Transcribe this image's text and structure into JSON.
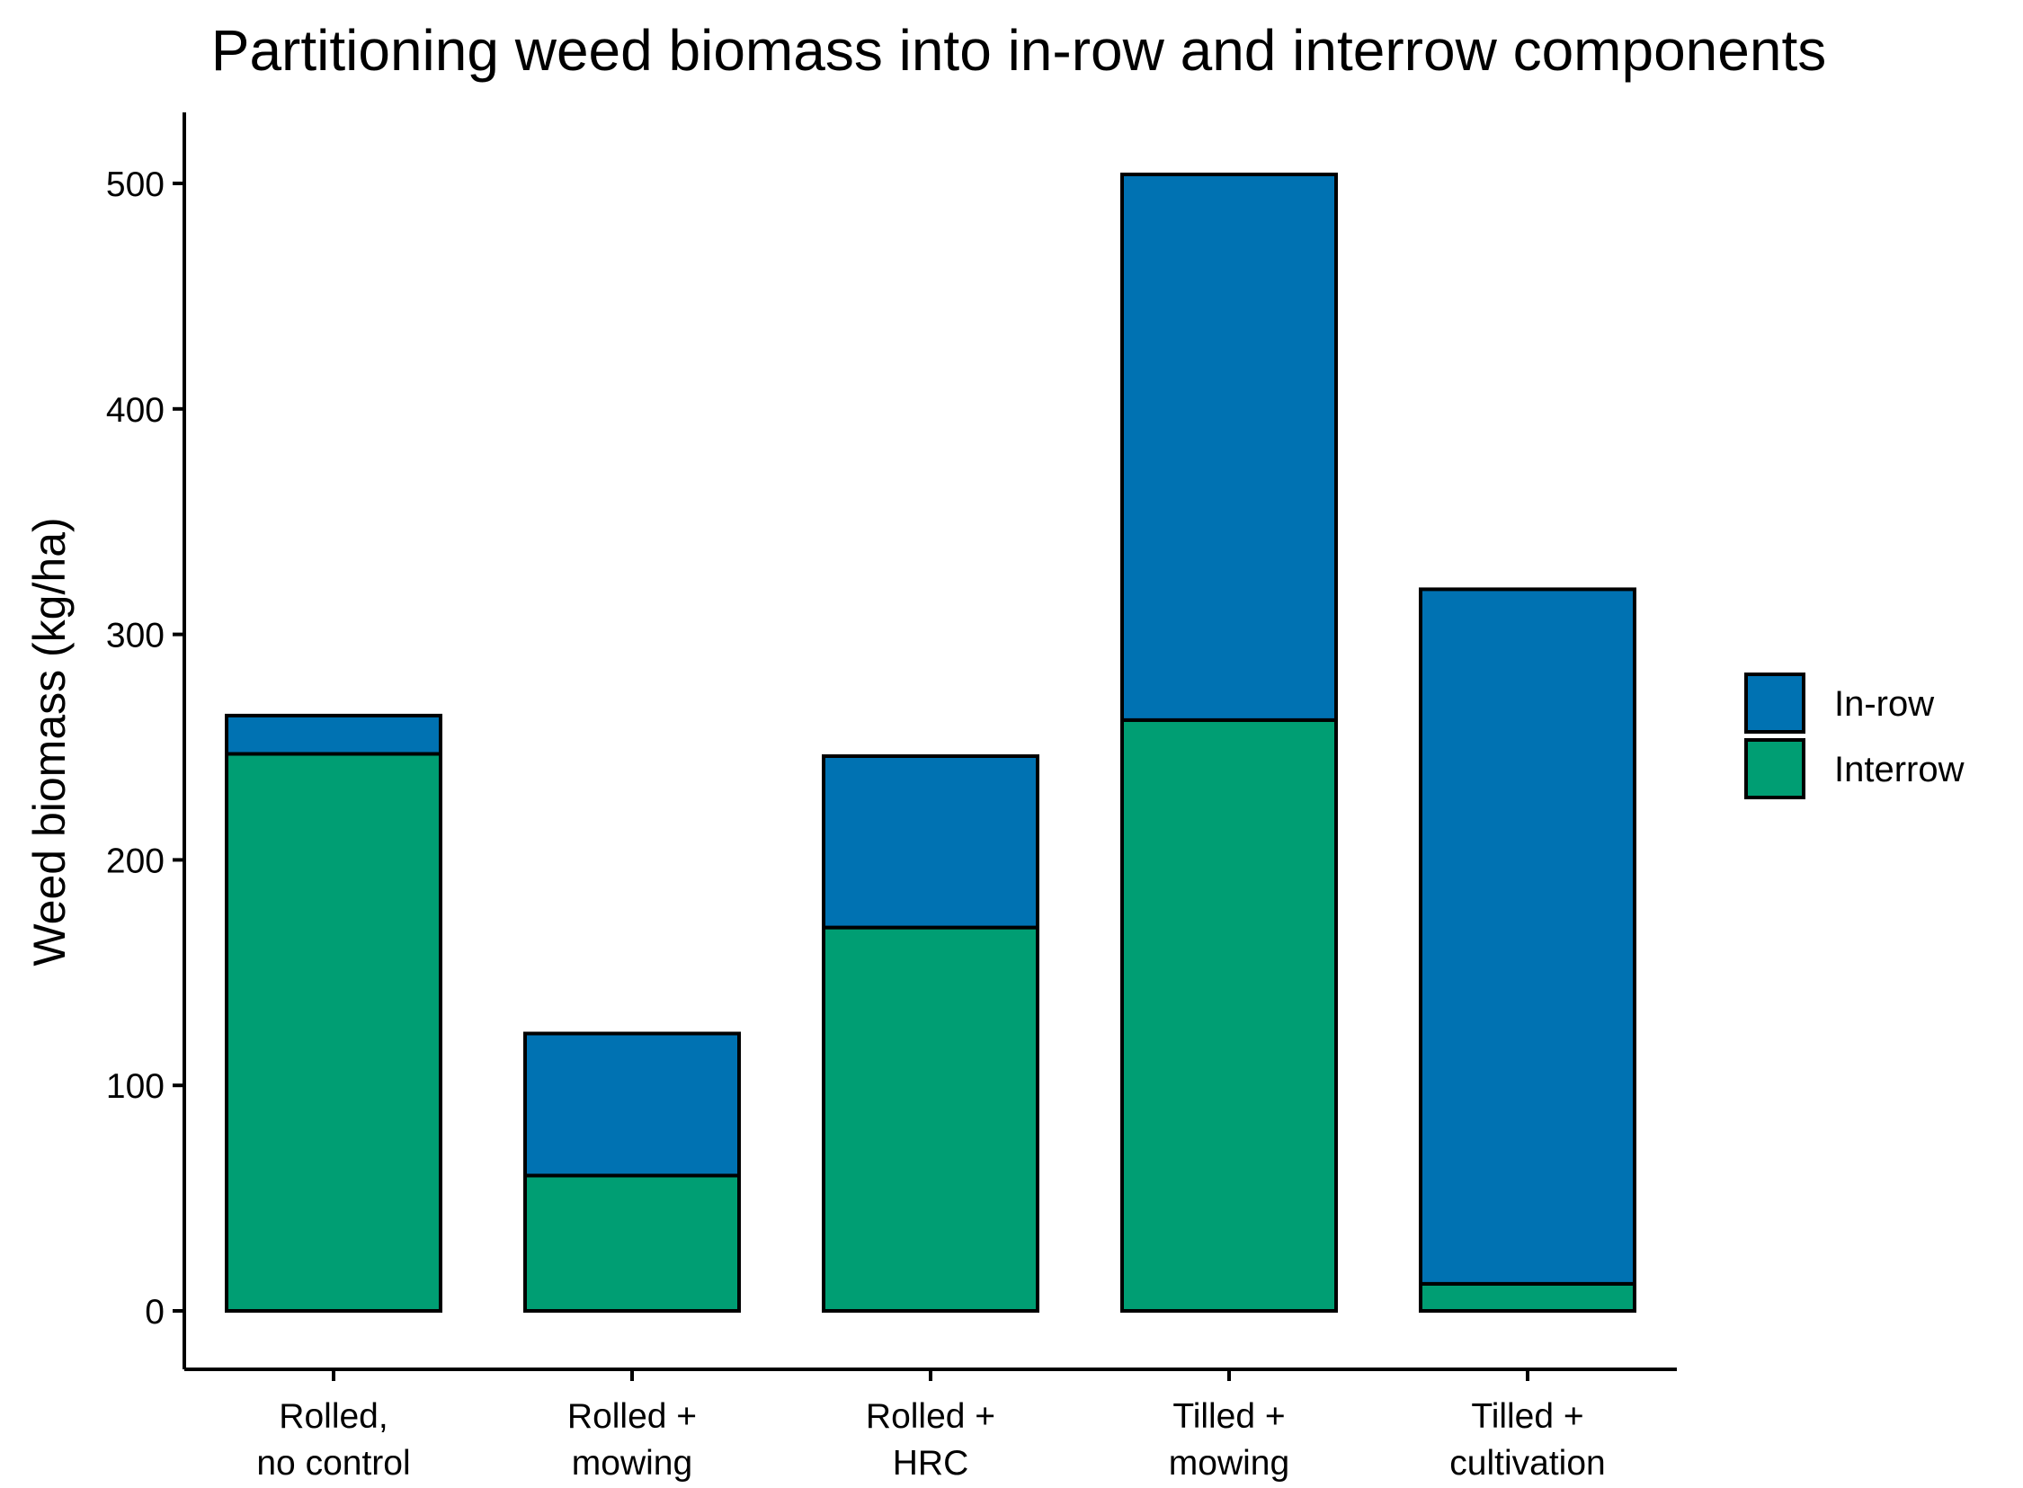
{
  "chart_data": {
    "type": "bar",
    "stacked": true,
    "title": "Partitioning weed biomass into in-row and interrow components",
    "xlabel": "",
    "ylabel": "Weed biomass (kg/ha)",
    "ylim": [
      -25,
      530
    ],
    "yticks": [
      0,
      100,
      200,
      300,
      400,
      500
    ],
    "grid": false,
    "legend_position": "right",
    "categories": [
      [
        "Rolled,",
        "no control"
      ],
      [
        "Rolled +",
        "mowing"
      ],
      [
        "Rolled +",
        "HRC"
      ],
      [
        "Tilled +",
        "mowing"
      ],
      [
        "Tilled +",
        "cultivation"
      ]
    ],
    "series": [
      {
        "name": "Interrow",
        "color": "#009E73",
        "values": [
          247,
          60,
          170,
          262,
          12
        ]
      },
      {
        "name": "In-row",
        "color": "#0072B2",
        "values": [
          17,
          63,
          76,
          242,
          308
        ]
      }
    ],
    "legend_order": [
      "In-row",
      "Interrow"
    ]
  }
}
